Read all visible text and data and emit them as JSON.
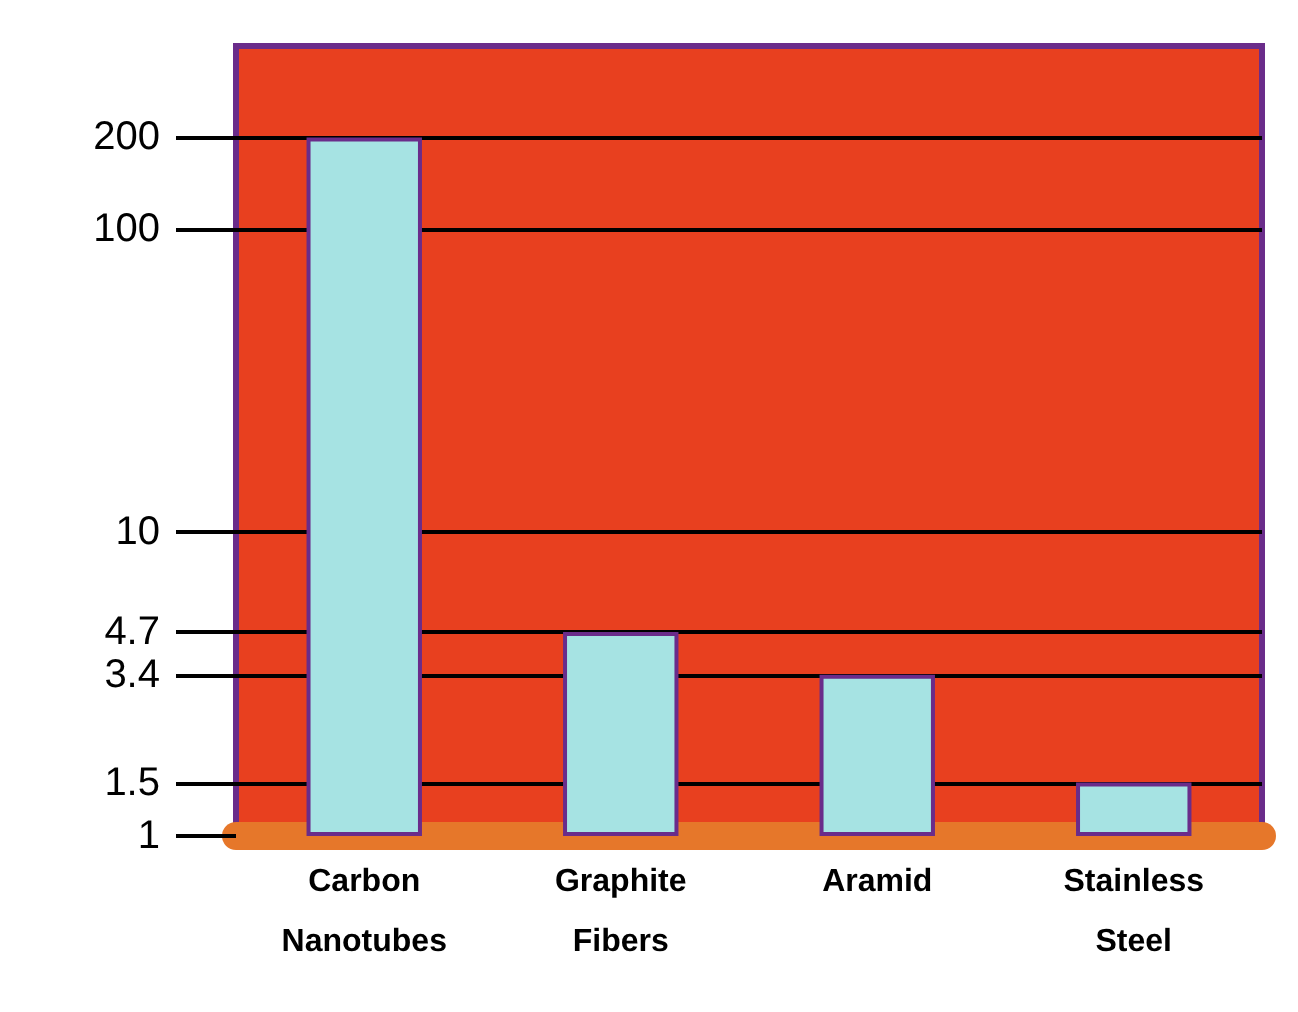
{
  "chart_data": {
    "type": "bar",
    "categories": [
      "Carbon\nNanotubes",
      "Graphite\nFibers",
      "Aramid",
      "Stainless\nSteel"
    ],
    "values": [
      200,
      4.7,
      3.4,
      1.5
    ],
    "color": "#a6e3e3",
    "log": true,
    "ylim": [
      1,
      400
    ],
    "yticks": [
      1,
      1.5,
      3.4,
      4.7,
      10,
      100,
      200
    ],
    "grid": "y"
  }
}
